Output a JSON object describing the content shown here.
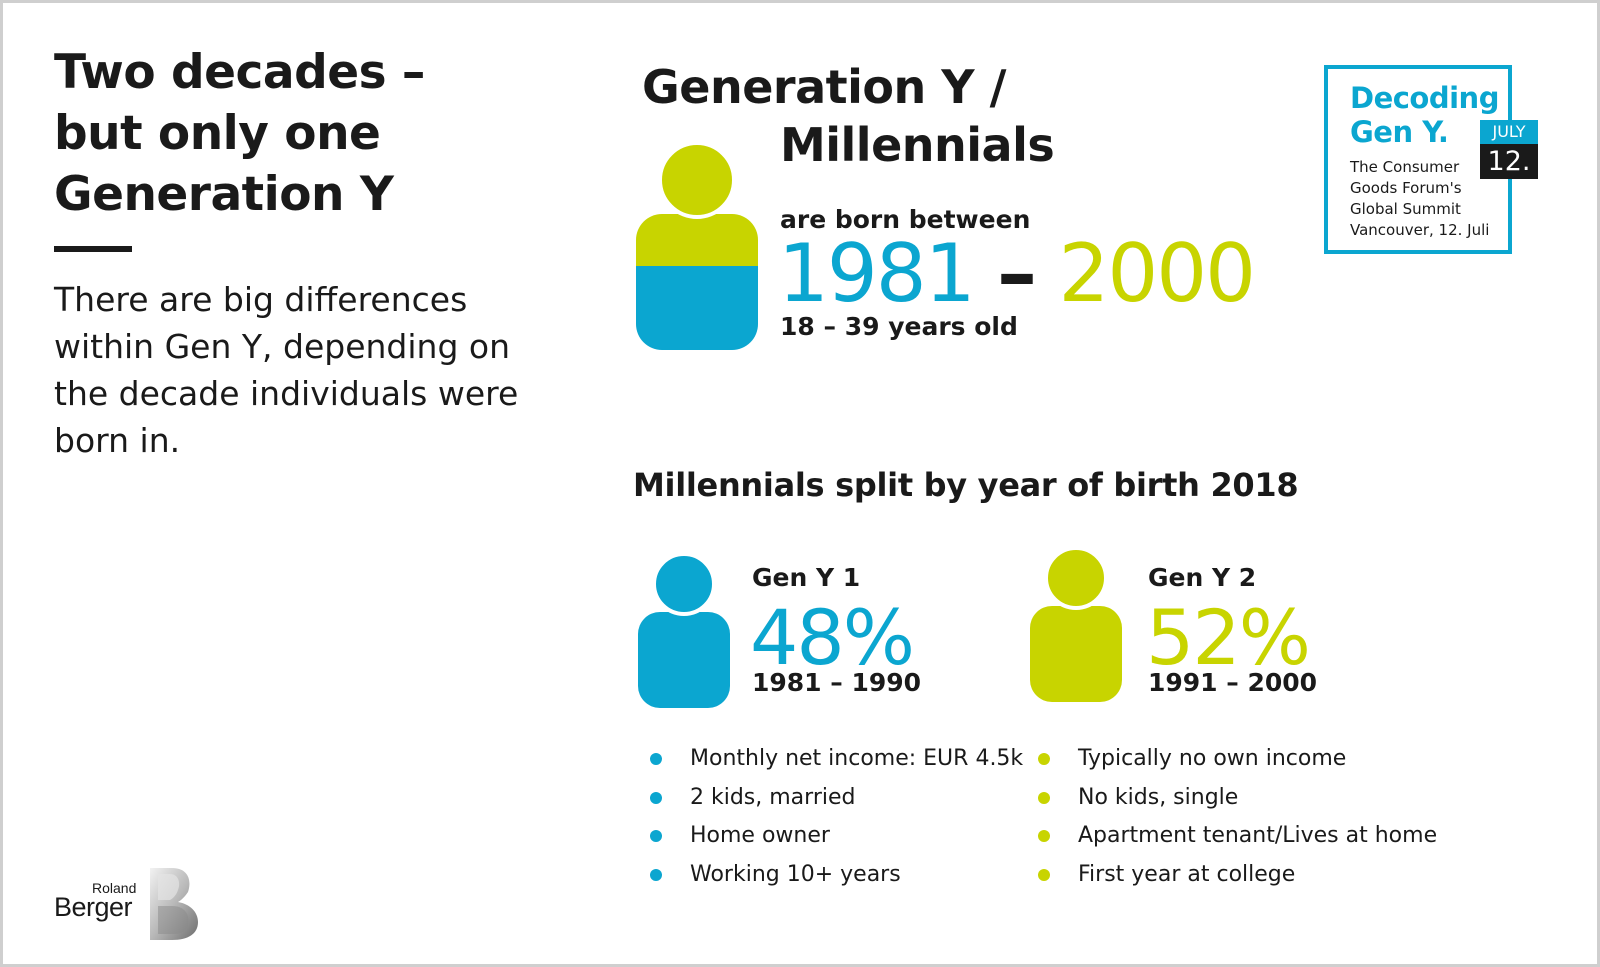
{
  "left": {
    "title": "Two decades – but only one Generation Y",
    "intro": "There are big differences within Gen Y, depending on the decade individuals were born in."
  },
  "generation": {
    "title_line1": "Generation Y /",
    "title_line2": "Millennials",
    "born_label": "are born between",
    "year_start": "1981",
    "year_separator": "–",
    "year_end": "2000",
    "age_range": "18 – 39 years old"
  },
  "badge": {
    "title_line1": "Decoding",
    "title_line2": "Gen Y.",
    "line1": "The Consumer",
    "line2": "Goods Forum's",
    "line3": "Global Summit",
    "line4": "Vancouver, 12. Juli",
    "month": "JULY",
    "day": "12."
  },
  "split": {
    "title": "Millennials split by year of birth 2018",
    "groups": [
      {
        "name": "Gen Y 1",
        "percent": "48%",
        "range": "1981 – 1990",
        "color": "#0ba6d0",
        "bullets": [
          "Monthly net income: EUR 4.5k",
          "2 kids, married",
          "Home owner",
          "Working 10+ years"
        ]
      },
      {
        "name": "Gen Y 2",
        "percent": "52%",
        "range": "1991 – 2000",
        "color": "#c8d400",
        "bullets": [
          "Typically no own income",
          "No kids, single",
          "Apartment tenant/Lives at home",
          "First year at college"
        ]
      }
    ]
  },
  "logo": {
    "line1": "Roland",
    "line2": "Berger"
  },
  "colors": {
    "blue": "#0ba6d0",
    "lime": "#c8d400",
    "dark": "#1a1a1a"
  },
  "icons": [
    "person-icon",
    "person-icon",
    "person-icon",
    "roland-berger-logo-icon"
  ]
}
